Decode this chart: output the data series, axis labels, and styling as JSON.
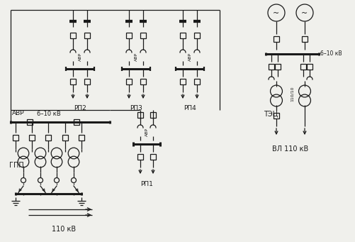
{
  "bg_color": "#f0f0ec",
  "lc": "#1a1a1a",
  "lw": 0.9,
  "lwb": 2.2,
  "ss": 8,
  "labels": {
    "rp1": "РП1",
    "rp2": "РП2",
    "rp3": "РП3",
    "rp4": "РП4",
    "gpp": "ГПП",
    "tec": "ТЭЦ",
    "avr": "АВР",
    "v6_10_top": "6–10 кВ",
    "v6_10_mid": "6–10 кВ",
    "vl110": "ВЛ 110 кВ",
    "v110": "110 кВ"
  },
  "fw": 5.02,
  "fh": 3.41,
  "dpi": 100
}
